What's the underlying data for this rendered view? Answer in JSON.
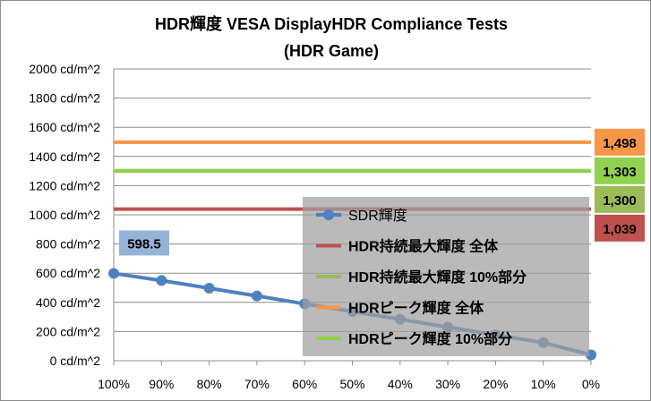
{
  "chart_data": {
    "type": "line",
    "title": [
      "HDR輝度 VESA DisplayHDR Compliance Tests",
      "(HDR Game)"
    ],
    "xlabel": "",
    "ylabel": "",
    "x": [
      "100%",
      "90%",
      "80%",
      "70%",
      "60%",
      "50%",
      "40%",
      "30%",
      "20%",
      "10%",
      "0%"
    ],
    "yticks": [
      "0 cd/m^2",
      "200 cd/m^2",
      "400 cd/m^2",
      "600 cd/m^2",
      "800 cd/m^2",
      "1000 cd/m^2",
      "1200 cd/m^2",
      "1400 cd/m^2",
      "1600 cd/m^2",
      "1800 cd/m^2",
      "2000 cd/m^2"
    ],
    "ylim": [
      0,
      2000
    ],
    "grid": true,
    "legend_position": "center-right",
    "series": [
      {
        "name": "SDR輝度",
        "color": "#4f81bd",
        "kind": "line-marker",
        "values": [
          598.5,
          550,
          497,
          444,
          390,
          337,
          284,
          230,
          177,
          124,
          40
        ]
      },
      {
        "name": "HDR持続最大輝度 全体",
        "color": "#c0504d",
        "kind": "constant",
        "value": 1039,
        "label": "1,039"
      },
      {
        "name": "HDR持続最大輝度 10%部分",
        "color": "#9bbb59",
        "kind": "constant",
        "value": 1300,
        "label": "1,300"
      },
      {
        "name": "HDRピーク輝度 全体",
        "color": "#f79646",
        "kind": "constant",
        "value": 1498,
        "label": "1,498"
      },
      {
        "name": "HDRピーク輝度 10%部分",
        "color": "#92d050",
        "kind": "constant",
        "value": 1303,
        "label": "1,303"
      }
    ],
    "annotations": [
      {
        "series": "SDR輝度",
        "index": 0,
        "label": "598.5"
      }
    ]
  }
}
